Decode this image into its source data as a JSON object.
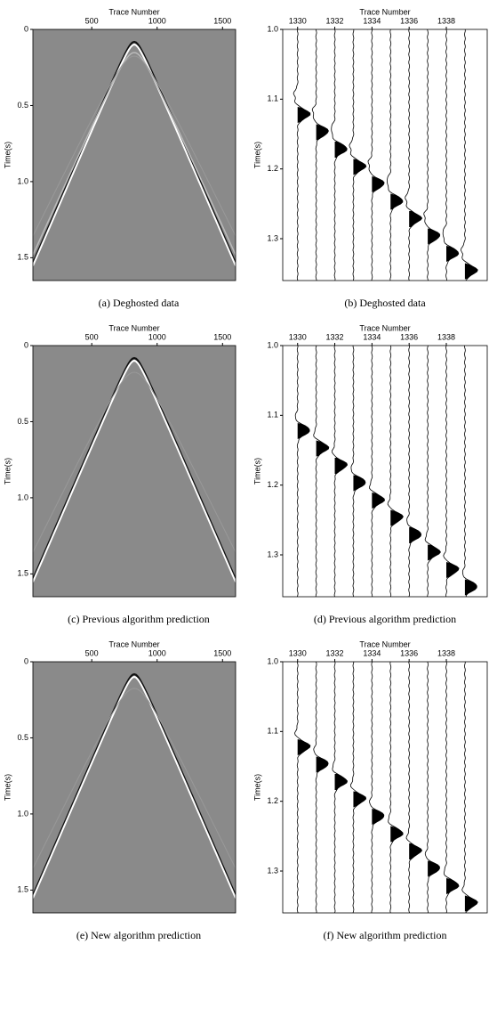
{
  "panels": [
    {
      "caption": "(a)  Deghosted data",
      "x_label": "Trace Number",
      "y_label": "Time(s)",
      "xlim": [
        50,
        1600
      ],
      "ylim": [
        0,
        1.65
      ],
      "xticks": [
        500,
        1000,
        1500
      ],
      "yticks": [
        0,
        0.5,
        {
          "value": 1,
          "label": "1.0"
        },
        1.5
      ]
    },
    {
      "caption": "(b)  Deghosted data",
      "x_label": "Trace Number",
      "y_label": "Time(s)",
      "xlim": [
        1329.2,
        1340.2
      ],
      "ylim": [
        1,
        1.36
      ],
      "xticks": [
        1330,
        1332,
        1334,
        1336,
        1338
      ],
      "yticks": [
        {
          "value": 1,
          "label": "1.0"
        },
        1.1,
        1.2,
        1.3
      ]
    },
    {
      "caption": "(c)  Previous algorithm prediction",
      "x_label": "Trace Number",
      "y_label": "Time(s)",
      "xlim": [
        50,
        1600
      ],
      "ylim": [
        0,
        1.65
      ],
      "xticks": [
        500,
        1000,
        1500
      ],
      "yticks": [
        0,
        0.5,
        {
          "value": 1,
          "label": "1.0"
        },
        1.5
      ]
    },
    {
      "caption": "(d)  Previous algorithm prediction",
      "x_label": "Trace Number",
      "y_label": "Time(s)",
      "xlim": [
        1329.2,
        1340.2
      ],
      "ylim": [
        1,
        1.36
      ],
      "xticks": [
        1330,
        1332,
        1334,
        1336,
        1338
      ],
      "yticks": [
        {
          "value": 1,
          "label": "1.0"
        },
        1.1,
        1.2,
        1.3
      ]
    },
    {
      "caption": "(e)  New algorithm prediction",
      "x_label": "Trace Number",
      "y_label": "Time(s)",
      "xlim": [
        50,
        1600
      ],
      "ylim": [
        0,
        1.65
      ],
      "xticks": [
        500,
        1000,
        1500
      ],
      "yticks": [
        0,
        0.5,
        {
          "value": 1,
          "label": "1.0"
        },
        1.5
      ]
    },
    {
      "caption": "(f)  New algorithm prediction",
      "x_label": "Trace Number",
      "y_label": "Time(s)",
      "xlim": [
        1329.2,
        1340.2
      ],
      "ylim": [
        1,
        1.36
      ],
      "xticks": [
        1330,
        1332,
        1334,
        1336,
        1338
      ],
      "yticks": [
        {
          "value": 1,
          "label": "1.0"
        },
        1.1,
        1.2,
        1.3
      ]
    }
  ]
}
